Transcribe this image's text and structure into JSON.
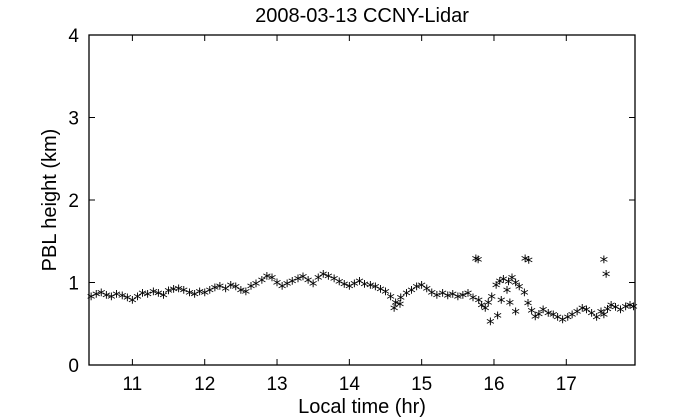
{
  "chart_data": {
    "type": "scatter",
    "title": "2008-03-13 CCNY-Lidar",
    "xlabel": "Local time (hr)",
    "ylabel": "PBL height (km)",
    "xlim": [
      10.4,
      17.95
    ],
    "ylim": [
      0,
      4
    ],
    "xticks": [
      11,
      12,
      13,
      14,
      15,
      16,
      17
    ],
    "yticks": [
      0,
      1,
      2,
      3,
      4
    ],
    "xtick_labels": [
      "11",
      "12",
      "13",
      "14",
      "15",
      "16",
      "17"
    ],
    "ytick_labels": [
      "0",
      "1",
      "2",
      "3",
      "4"
    ],
    "grid": false,
    "marker": "*",
    "marker_color": "#000000",
    "series": [
      {
        "x": [
          10.43,
          10.5,
          10.57,
          10.64,
          10.71,
          10.78,
          10.86,
          10.93,
          11.0,
          11.07,
          11.14,
          11.21,
          11.29,
          11.36,
          11.43,
          11.5,
          11.57,
          11.64,
          11.71,
          11.79,
          11.86,
          11.93,
          12.0,
          12.07,
          12.14,
          12.21,
          12.29,
          12.36,
          12.43,
          12.5,
          12.57,
          12.64,
          12.71,
          12.79,
          12.86,
          12.93,
          13.0,
          13.07,
          13.14,
          13.21,
          13.29,
          13.36,
          13.43,
          13.5,
          13.57,
          13.64,
          13.71,
          13.79,
          13.86,
          13.93,
          14.0,
          14.07,
          14.14,
          14.21,
          14.29,
          14.36,
          14.43,
          14.5,
          14.57,
          14.64,
          14.71,
          14.79,
          14.86,
          14.93,
          15.0,
          15.07,
          15.14,
          15.21,
          15.29,
          15.36,
          15.43,
          15.5,
          15.57,
          15.64,
          15.71,
          15.79,
          15.83,
          15.88,
          15.92,
          15.97,
          16.03,
          16.08,
          16.13,
          16.2,
          16.25,
          16.3,
          16.35,
          16.42,
          16.47,
          16.52,
          16.57,
          16.62,
          16.68,
          16.75,
          16.82,
          16.88,
          16.95,
          17.02,
          17.08,
          17.15,
          17.22,
          17.28,
          17.35,
          17.42,
          17.48,
          17.52,
          17.57,
          17.62,
          17.68,
          17.75,
          17.82,
          17.88,
          17.93,
          15.75,
          15.78,
          16.1,
          16.22,
          16.43,
          16.48,
          17.52,
          17.55,
          16.3,
          16.05,
          16.18,
          15.95,
          14.62,
          14.7
        ],
        "y": [
          0.8,
          0.83,
          0.85,
          0.82,
          0.8,
          0.83,
          0.81,
          0.79,
          0.76,
          0.8,
          0.84,
          0.83,
          0.86,
          0.84,
          0.82,
          0.87,
          0.89,
          0.9,
          0.88,
          0.85,
          0.83,
          0.86,
          0.85,
          0.88,
          0.91,
          0.93,
          0.9,
          0.94,
          0.92,
          0.88,
          0.86,
          0.93,
          0.96,
          1.0,
          1.05,
          1.03,
          0.97,
          0.93,
          0.96,
          0.99,
          1.02,
          1.04,
          1.0,
          0.96,
          1.03,
          1.07,
          1.05,
          1.02,
          0.98,
          0.95,
          0.93,
          0.96,
          0.99,
          0.95,
          0.94,
          0.92,
          0.89,
          0.86,
          0.8,
          0.73,
          0.79,
          0.84,
          0.88,
          0.92,
          0.94,
          0.9,
          0.85,
          0.82,
          0.84,
          0.81,
          0.83,
          0.8,
          0.82,
          0.84,
          0.79,
          0.76,
          0.7,
          0.66,
          0.73,
          0.8,
          0.94,
          0.99,
          1.01,
          0.98,
          1.03,
          0.97,
          0.92,
          0.85,
          0.72,
          0.63,
          0.56,
          0.59,
          0.64,
          0.6,
          0.58,
          0.55,
          0.52,
          0.55,
          0.58,
          0.62,
          0.66,
          0.64,
          0.6,
          0.55,
          0.62,
          0.58,
          0.65,
          0.7,
          0.67,
          0.64,
          0.68,
          0.7,
          0.68,
          1.26,
          1.25,
          0.76,
          0.73,
          1.26,
          1.24,
          1.25,
          1.07,
          0.62,
          0.57,
          0.88,
          0.5,
          0.66,
          0.71
        ]
      }
    ]
  }
}
